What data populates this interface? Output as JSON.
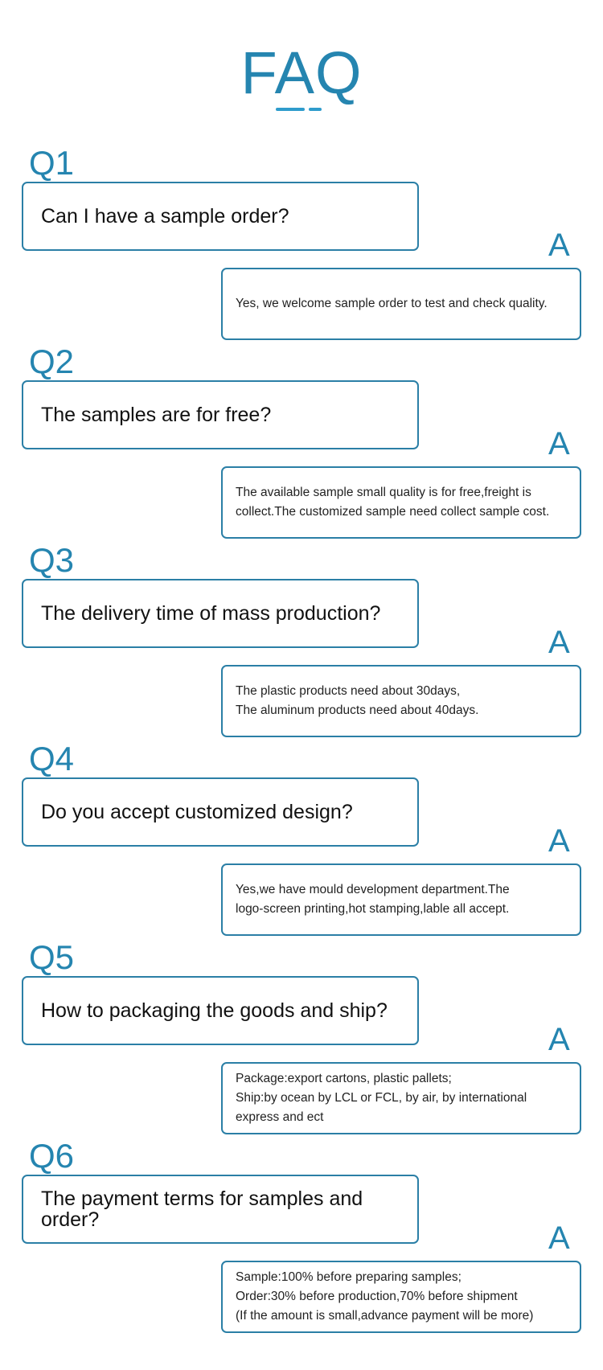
{
  "title": "FAQ",
  "accent_color": "#2585b0",
  "answer_label": "A",
  "items": [
    {
      "label": "Q1",
      "question": "Can I have a sample order?",
      "answer": "Yes, we welcome sample order to test and check quality."
    },
    {
      "label": "Q2",
      "question": "The samples are for free?",
      "answer": "The available sample small quality is for free,freight is\ncollect.The customized sample need collect sample cost."
    },
    {
      "label": "Q3",
      "question": "The delivery time of mass production?",
      "answer": "The plastic products need about 30days,\nThe aluminum products need about 40days."
    },
    {
      "label": "Q4",
      "question": "Do you accept customized design?",
      "answer": "Yes,we have mould development department.The\nlogo-screen printing,hot stamping,lable all accept."
    },
    {
      "label": "Q5",
      "question": "How to packaging the goods and ship?",
      "answer": "Package:export cartons, plastic pallets;\nShip:by ocean  by LCL or FCL, by air, by international\nexpress and ect"
    },
    {
      "label": "Q6",
      "question": "The payment terms for samples and order?",
      "answer": "Sample:100% before preparing samples;\nOrder:30% before production,70% before shipment\n(If the amount is small,advance payment will be more)"
    }
  ]
}
